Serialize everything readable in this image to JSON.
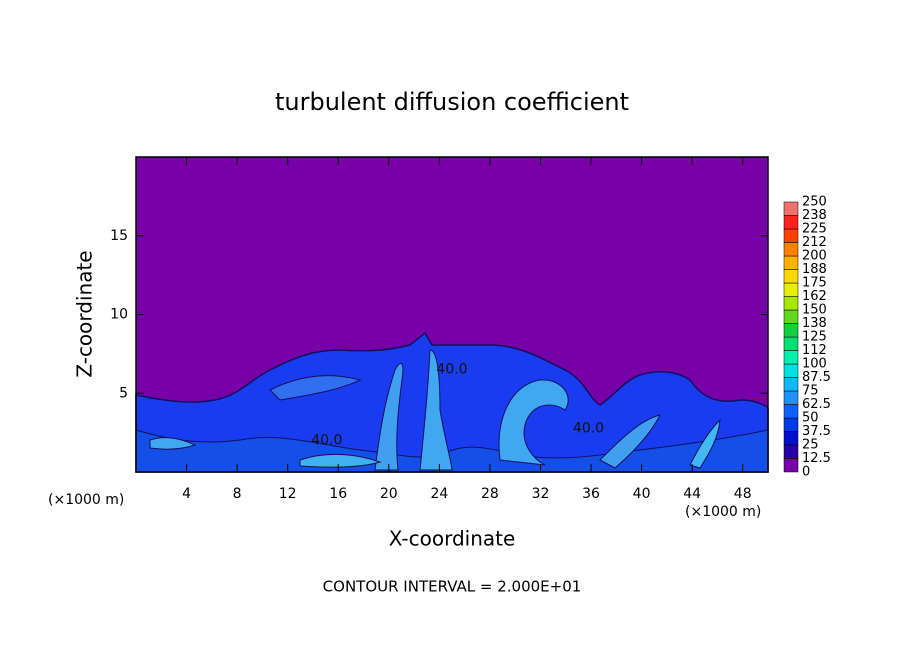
{
  "chart_data": {
    "type": "contour",
    "title": "turbulent diffusion coefficient",
    "x_label": "X-coordinate",
    "y_label": "Z-coordinate",
    "x_unit_label": "(×1000 m)",
    "footer": "CONTOUR INTERVAL = 2.000E+01",
    "xlim": [
      0,
      50
    ],
    "xticks": [
      4,
      8,
      12,
      16,
      20,
      24,
      28,
      32,
      36,
      40,
      44,
      48
    ],
    "ylim": [
      0,
      20
    ],
    "yticks": [
      5,
      10,
      15
    ],
    "colorbar": {
      "levels": [
        0,
        12.5,
        25,
        37.5,
        50,
        62.5,
        75,
        87.5,
        100,
        112,
        125,
        138,
        150,
        162,
        175,
        188,
        200,
        212,
        225,
        238,
        250
      ],
      "colors": [
        "#7800a8",
        "#2a00a8",
        "#0010d0",
        "#0038f0",
        "#1060ff",
        "#2090ff",
        "#10b8f8",
        "#00e0e0",
        "#00f0b0",
        "#00e070",
        "#10d040",
        "#60d820",
        "#a8e800",
        "#e8f000",
        "#ffd800",
        "#ffb000",
        "#ff8000",
        "#ff4000",
        "#ff2020",
        "#f07070"
      ]
    },
    "annotations": [
      {
        "text": "40.0",
        "x": 15.1,
        "y": 2.0
      },
      {
        "text": "40.0",
        "x": 25.0,
        "y": 6.5
      },
      {
        "text": "40.0",
        "x": 35.8,
        "y": 2.75
      }
    ]
  }
}
